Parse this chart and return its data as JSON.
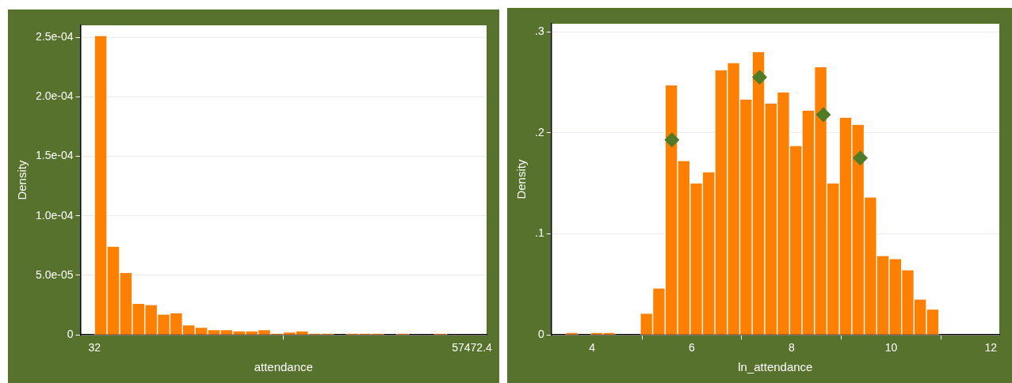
{
  "chart_data": [
    {
      "type": "histogram",
      "xlabel": "attendance",
      "ylabel": "Density",
      "color": "#ff8000",
      "grid": "y",
      "bins": [
        32,
        1946.68,
        3861.36,
        5776.04,
        7690.72,
        9605.4,
        11520.08,
        13434.76,
        15349.44,
        17264.12,
        19178.8,
        21093.48,
        23008.16,
        24922.84,
        26837.52,
        28752.2,
        30666.88,
        32581.56,
        34496.24,
        36410.92,
        38325.6,
        40240.28,
        42154.96,
        44069.64,
        45984.32,
        47899,
        49813.68,
        51728.36,
        53643.04,
        55557.72,
        57472.4
      ],
      "values": [
        0.000251,
        7.4e-05,
        5.2e-05,
        2.6e-05,
        2.5e-05,
        1.7e-05,
        1.8e-05,
        8e-06,
        6e-06,
        4e-06,
        4e-06,
        3e-06,
        3e-06,
        4e-06,
        1e-06,
        2e-06,
        3e-06,
        1e-06,
        1e-06,
        0,
        1e-06,
        1e-06,
        1e-06,
        0,
        1e-06,
        0,
        0,
        1e-06,
        0,
        0
      ],
      "xlim": [
        -2100,
        59700
      ],
      "xticks": [
        32,
        57472.4
      ],
      "ylim": [
        0,
        0.00026
      ],
      "yticks": [
        0,
        {
          "value": 5e-05,
          "label": "5.0e-05"
        },
        {
          "value": 0.0001,
          "label": "1.0e-04"
        },
        {
          "value": 0.00015,
          "label": "1.5e-04"
        },
        {
          "value": 0.0002,
          "label": "2.0e-04"
        },
        {
          "value": 0.00025,
          "label": "2.5e-04"
        }
      ]
    },
    {
      "type": "histogram",
      "xlabel": "ln_attendance",
      "ylabel": "Density",
      "color": "#ff8000",
      "grid": "y",
      "bins": [
        3.466,
        3.716,
        3.965,
        4.215,
        4.465,
        4.715,
        4.964,
        5.214,
        5.464,
        5.713,
        5.963,
        6.213,
        6.463,
        6.712,
        6.962,
        7.212,
        7.462,
        7.711,
        7.961,
        8.211,
        8.461,
        8.71,
        8.96,
        9.21,
        9.459,
        9.709,
        9.959,
        10.209,
        10.458,
        10.708,
        10.959
      ],
      "values": [
        0.002,
        0,
        0.002,
        0.002,
        0,
        0,
        0.021,
        0.046,
        0.247,
        0.172,
        0.15,
        0.161,
        0.262,
        0.269,
        0.233,
        0.28,
        0.229,
        0.24,
        0.187,
        0.222,
        0.265,
        0.15,
        0.215,
        0.208,
        0.136,
        0.078,
        0.075,
        0.064,
        0.035,
        0.025
      ],
      "series": [
        {
          "type": "scatter",
          "marker": "diamond",
          "color": "#4f7a28",
          "x": [
            5.6,
            7.36,
            8.64,
            9.38
          ],
          "values": [
            0.193,
            0.255,
            0.218,
            0.175
          ]
        }
      ],
      "xlim": [
        3.18,
        12.17
      ],
      "xticks": [
        4,
        6,
        8,
        10,
        12
      ],
      "ylim": [
        0,
        0.308
      ],
      "yticks": [
        0,
        {
          "value": 0.1,
          "label": ".1"
        },
        {
          "value": 0.2,
          "label": ".2"
        },
        {
          "value": 0.3,
          "label": ".3"
        }
      ]
    }
  ]
}
